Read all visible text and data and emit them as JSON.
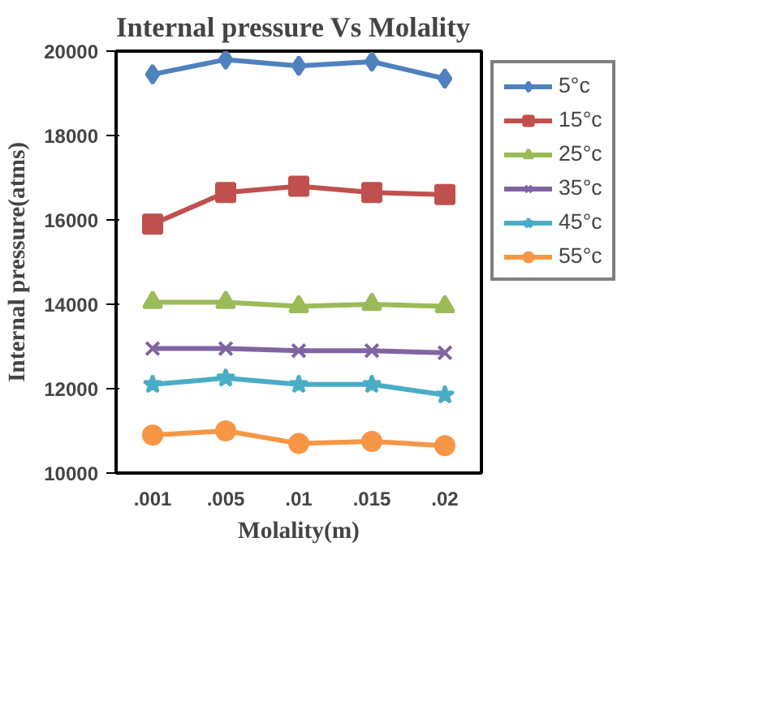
{
  "chart_data": {
    "type": "line",
    "title": "Internal pressure Vs Molality",
    "xlabel": "Molality(m)",
    "ylabel": "Internal pressure(atms)",
    "categories": [
      ".001",
      ".005",
      ".01",
      ".015",
      ".02"
    ],
    "ylim": [
      10000,
      20000
    ],
    "yticks": [
      10000,
      12000,
      14000,
      16000,
      18000,
      20000
    ],
    "legend": "right",
    "series": [
      {
        "name": "5°c",
        "color": "#4f81bd",
        "marker": "diamond",
        "values": [
          19450,
          19800,
          19650,
          19750,
          19350
        ]
      },
      {
        "name": "15°c",
        "color": "#c0504d",
        "marker": "square",
        "values": [
          15900,
          16650,
          16800,
          16650,
          16600
        ]
      },
      {
        "name": "25°c",
        "color": "#9bbb59",
        "marker": "triangle",
        "values": [
          14050,
          14050,
          13950,
          14000,
          13950
        ]
      },
      {
        "name": "35°c",
        "color": "#8064a2",
        "marker": "cross",
        "values": [
          12950,
          12950,
          12900,
          12900,
          12850
        ]
      },
      {
        "name": "45°c",
        "color": "#4bacc6",
        "marker": "star",
        "values": [
          12100,
          12250,
          12100,
          12100,
          11850
        ]
      },
      {
        "name": "55°c",
        "color": "#f79646",
        "marker": "circle",
        "values": [
          10900,
          11000,
          10700,
          10750,
          10650
        ]
      }
    ]
  }
}
